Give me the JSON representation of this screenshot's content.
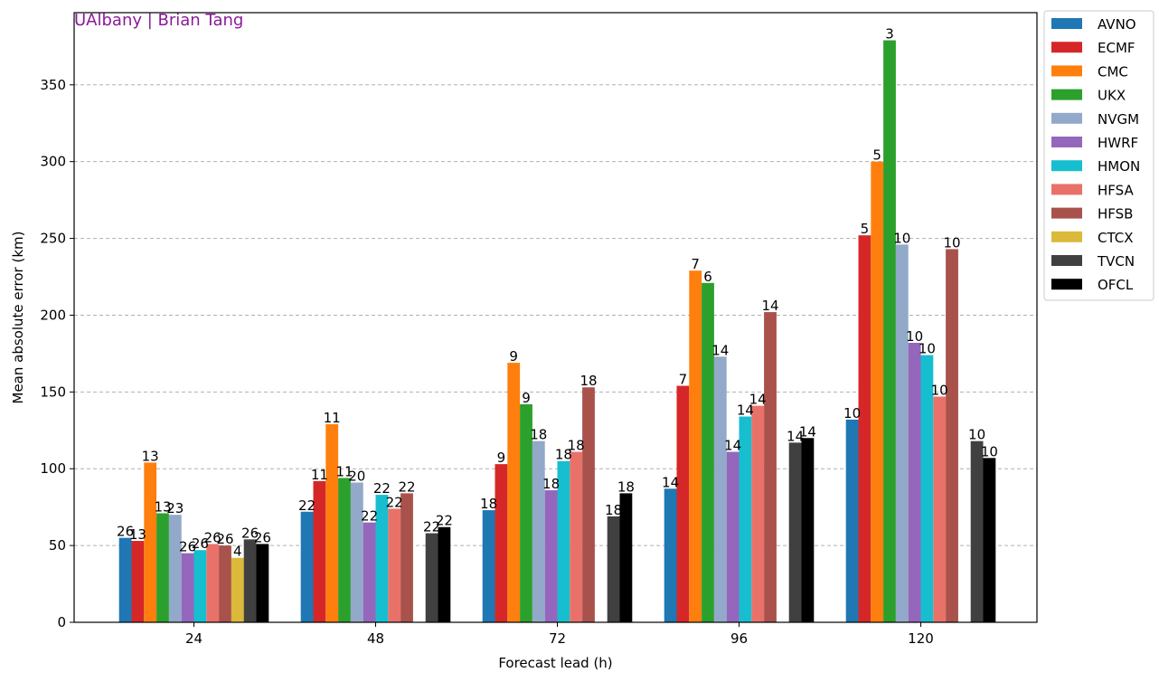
{
  "watermark": "UAlbany | Brian Tang",
  "chart_data": {
    "type": "bar",
    "title": "",
    "xlabel": "Forecast lead (h)",
    "ylabel": "Mean absolute error (km)",
    "ylim": [
      0,
      397
    ],
    "yticks": [
      0,
      50,
      100,
      150,
      200,
      250,
      300,
      350
    ],
    "grid": "horizontal dashed",
    "legend_placement": "outside-upper-right",
    "categories": [
      "24",
      "48",
      "72",
      "96",
      "120"
    ],
    "series": [
      {
        "name": "AVNO",
        "color": "#1f77b4",
        "values": [
          55,
          72,
          73,
          87,
          132
        ],
        "counts": [
          "26",
          "22",
          "18",
          "14",
          "10"
        ]
      },
      {
        "name": "ECMF",
        "color": "#d62728",
        "values": [
          53,
          92,
          103,
          154,
          252
        ],
        "counts": [
          "13",
          "11",
          "9",
          "7",
          "5"
        ]
      },
      {
        "name": "CMC",
        "color": "#ff7f0e",
        "values": [
          104,
          129,
          169,
          229,
          300
        ],
        "counts": [
          "13",
          "11",
          "9",
          "7",
          "5"
        ]
      },
      {
        "name": "UKX",
        "color": "#2ca02c",
        "values": [
          71,
          94,
          142,
          221,
          379
        ],
        "counts": [
          "13",
          "11",
          "9",
          "6",
          "3"
        ]
      },
      {
        "name": "NVGM",
        "color": "#92a9c9",
        "values": [
          70,
          91,
          118,
          173,
          246
        ],
        "counts": [
          "23",
          "20",
          "18",
          "14",
          "10"
        ]
      },
      {
        "name": "HWRF",
        "color": "#9467bd",
        "values": [
          45,
          65,
          86,
          111,
          182
        ],
        "counts": [
          "26",
          "22",
          "18",
          "14",
          "10"
        ]
      },
      {
        "name": "HMON",
        "color": "#17becf",
        "values": [
          47,
          83,
          105,
          134,
          174
        ],
        "counts": [
          "26",
          "22",
          "18",
          "14",
          "10"
        ]
      },
      {
        "name": "HFSA",
        "color": "#e8726a",
        "values": [
          51,
          74,
          111,
          141,
          147
        ],
        "counts": [
          "26",
          "22",
          "18",
          "14",
          "10"
        ]
      },
      {
        "name": "HFSB",
        "color": "#a9524c",
        "values": [
          50,
          84,
          153,
          202,
          243
        ],
        "counts": [
          "26",
          "22",
          "18",
          "14",
          "10"
        ]
      },
      {
        "name": "CTCX",
        "color": "#dbb93a",
        "values": [
          42,
          null,
          null,
          null,
          null
        ],
        "counts": [
          "4",
          "",
          "",
          "",
          ""
        ]
      },
      {
        "name": "TVCN",
        "color": "#404040",
        "values": [
          54,
          58,
          69,
          117,
          118
        ],
        "counts": [
          "26",
          "22",
          "18",
          "14",
          "10"
        ]
      },
      {
        "name": "OFCL",
        "color": "#000000",
        "values": [
          51,
          62,
          84,
          120,
          107
        ],
        "counts": [
          "26",
          "22",
          "18",
          "14",
          "10"
        ]
      }
    ]
  }
}
